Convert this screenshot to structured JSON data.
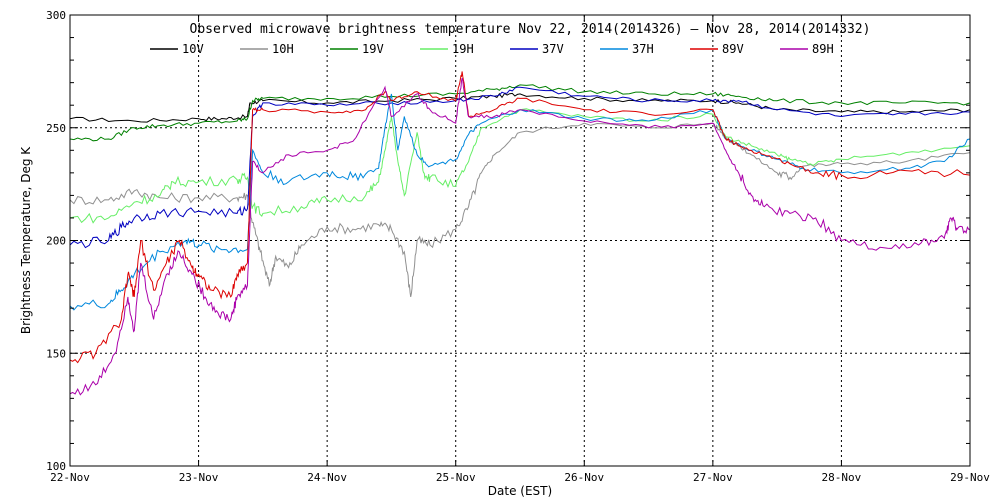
{
  "chart_data": {
    "type": "line",
    "title": "Observed microwave brightness temperature Nov 22, 2014(2014326) – Nov 28, 2014(2014332)",
    "xlabel": "Date (EST)",
    "ylabel": "Brightness Temperature, Deg K",
    "x_categories": [
      "22-Nov",
      "23-Nov",
      "24-Nov",
      "25-Nov",
      "26-Nov",
      "27-Nov",
      "28-Nov",
      "29-Nov"
    ],
    "xlim": [
      0,
      7
    ],
    "ylim": [
      100,
      300
    ],
    "y_ticks": [
      100,
      150,
      200,
      250,
      300
    ],
    "grid": true,
    "legend_position": "top",
    "x_unit": "days since 22-Nov 00:00",
    "series": [
      {
        "name": "10V",
        "color": "#000000",
        "points": [
          [
            0,
            254
          ],
          [
            0.5,
            253
          ],
          [
            1,
            254
          ],
          [
            1.2,
            254
          ],
          [
            1.38,
            255
          ],
          [
            1.4,
            261
          ],
          [
            1.5,
            262
          ],
          [
            2,
            261
          ],
          [
            2.5,
            262
          ],
          [
            3,
            263
          ],
          [
            3.3,
            264
          ],
          [
            3.5,
            265
          ],
          [
            4,
            263
          ],
          [
            4.5,
            262
          ],
          [
            5,
            262
          ],
          [
            5.2,
            261
          ],
          [
            5.5,
            258
          ],
          [
            6,
            257
          ],
          [
            6.5,
            257
          ],
          [
            7,
            258
          ]
        ]
      },
      {
        "name": "10H",
        "color": "#909090",
        "points": [
          [
            0,
            218
          ],
          [
            0.3,
            218
          ],
          [
            0.5,
            222
          ],
          [
            0.7,
            219
          ],
          [
            1,
            219
          ],
          [
            1.3,
            219
          ],
          [
            1.38,
            220
          ],
          [
            1.42,
            208
          ],
          [
            1.48,
            195
          ],
          [
            1.55,
            180
          ],
          [
            1.6,
            193
          ],
          [
            1.7,
            188
          ],
          [
            1.8,
            198
          ],
          [
            2,
            206
          ],
          [
            2.2,
            205
          ],
          [
            2.4,
            207
          ],
          [
            2.5,
            205
          ],
          [
            2.6,
            195
          ],
          [
            2.65,
            175
          ],
          [
            2.7,
            200
          ],
          [
            2.8,
            198
          ],
          [
            3,
            205
          ],
          [
            3.1,
            215
          ],
          [
            3.2,
            230
          ],
          [
            3.3,
            238
          ],
          [
            3.5,
            248
          ],
          [
            4,
            252
          ],
          [
            4.5,
            250
          ],
          [
            5,
            252
          ],
          [
            5.1,
            246
          ],
          [
            5.2,
            242
          ],
          [
            5.3,
            238
          ],
          [
            5.5,
            230
          ],
          [
            5.6,
            228
          ],
          [
            5.7,
            233
          ],
          [
            6,
            234
          ],
          [
            6.5,
            235
          ],
          [
            7,
            239
          ]
        ]
      },
      {
        "name": "19V",
        "color": "#008000",
        "points": [
          [
            0,
            245
          ],
          [
            0.3,
            245
          ],
          [
            0.5,
            250
          ],
          [
            0.7,
            251
          ],
          [
            1,
            252
          ],
          [
            1.3,
            253
          ],
          [
            1.38,
            254
          ],
          [
            1.42,
            262
          ],
          [
            1.5,
            263
          ],
          [
            2,
            263
          ],
          [
            2.5,
            264
          ],
          [
            3,
            265
          ],
          [
            3.3,
            267
          ],
          [
            3.5,
            269
          ],
          [
            4,
            266
          ],
          [
            4.5,
            265
          ],
          [
            5,
            265
          ],
          [
            5.2,
            264
          ],
          [
            5.5,
            262
          ],
          [
            6,
            261
          ],
          [
            6.5,
            261
          ],
          [
            7,
            261
          ]
        ]
      },
      {
        "name": "19H",
        "color": "#66ee66",
        "points": [
          [
            0,
            210
          ],
          [
            0.3,
            210
          ],
          [
            0.5,
            217
          ],
          [
            0.7,
            220
          ],
          [
            0.8,
            226
          ],
          [
            1,
            226
          ],
          [
            1.3,
            227
          ],
          [
            1.38,
            228
          ],
          [
            1.42,
            215
          ],
          [
            1.5,
            212
          ],
          [
            1.8,
            215
          ],
          [
            2,
            218
          ],
          [
            2.3,
            220
          ],
          [
            2.4,
            226
          ],
          [
            2.45,
            240
          ],
          [
            2.5,
            255
          ],
          [
            2.55,
            235
          ],
          [
            2.6,
            220
          ],
          [
            2.7,
            248
          ],
          [
            2.75,
            230
          ],
          [
            2.8,
            228
          ],
          [
            3,
            224
          ],
          [
            3.1,
            235
          ],
          [
            3.2,
            250
          ],
          [
            3.5,
            258
          ],
          [
            4,
            255
          ],
          [
            4.5,
            253
          ],
          [
            5,
            256
          ],
          [
            5.1,
            246
          ],
          [
            5.3,
            242
          ],
          [
            5.5,
            238
          ],
          [
            5.6,
            236
          ],
          [
            5.8,
            234
          ],
          [
            6,
            236
          ],
          [
            6.5,
            239
          ],
          [
            7,
            242
          ]
        ]
      },
      {
        "name": "37V",
        "color": "#0000c0",
        "points": [
          [
            0,
            198
          ],
          [
            0.3,
            200
          ],
          [
            0.4,
            206
          ],
          [
            0.5,
            210
          ],
          [
            0.7,
            212
          ],
          [
            1,
            213
          ],
          [
            1.3,
            212
          ],
          [
            1.38,
            214
          ],
          [
            1.42,
            255
          ],
          [
            1.5,
            261
          ],
          [
            2,
            260
          ],
          [
            2.5,
            261
          ],
          [
            3,
            262
          ],
          [
            3.3,
            264
          ],
          [
            3.5,
            268
          ],
          [
            4,
            264
          ],
          [
            4.5,
            262
          ],
          [
            5,
            262
          ],
          [
            5.2,
            262
          ],
          [
            5.5,
            258
          ],
          [
            6,
            255
          ],
          [
            6.5,
            256
          ],
          [
            7,
            257
          ]
        ]
      },
      {
        "name": "37H",
        "color": "#0088dd",
        "points": [
          [
            0,
            171
          ],
          [
            0.3,
            172
          ],
          [
            0.4,
            178
          ],
          [
            0.5,
            185
          ],
          [
            0.7,
            195
          ],
          [
            0.9,
            200
          ],
          [
            1,
            198
          ],
          [
            1.2,
            196
          ],
          [
            1.38,
            196
          ],
          [
            1.42,
            240
          ],
          [
            1.5,
            230
          ],
          [
            1.7,
            226
          ],
          [
            2,
            230
          ],
          [
            2.2,
            228
          ],
          [
            2.4,
            232
          ],
          [
            2.45,
            250
          ],
          [
            2.5,
            265
          ],
          [
            2.55,
            240
          ],
          [
            2.6,
            255
          ],
          [
            2.7,
            238
          ],
          [
            2.8,
            233
          ],
          [
            3,
            236
          ],
          [
            3.1,
            247
          ],
          [
            3.2,
            252
          ],
          [
            3.5,
            258
          ],
          [
            4,
            254
          ],
          [
            4.5,
            253
          ],
          [
            5,
            258
          ],
          [
            5.1,
            245
          ],
          [
            5.3,
            240
          ],
          [
            5.5,
            236
          ],
          [
            5.7,
            232
          ],
          [
            6,
            230
          ],
          [
            6.5,
            232
          ],
          [
            6.8,
            235
          ],
          [
            7,
            245
          ]
        ]
      },
      {
        "name": "89V",
        "color": "#dd0000",
        "points": [
          [
            0,
            147
          ],
          [
            0.2,
            150
          ],
          [
            0.4,
            165
          ],
          [
            0.45,
            185
          ],
          [
            0.5,
            175
          ],
          [
            0.55,
            200
          ],
          [
            0.65,
            178
          ],
          [
            0.75,
            190
          ],
          [
            0.85,
            200
          ],
          [
            0.95,
            188
          ],
          [
            1,
            185
          ],
          [
            1.1,
            178
          ],
          [
            1.25,
            175
          ],
          [
            1.3,
            185
          ],
          [
            1.38,
            190
          ],
          [
            1.42,
            258
          ],
          [
            1.5,
            258
          ],
          [
            2,
            257
          ],
          [
            2.3,
            258
          ],
          [
            2.45,
            266
          ],
          [
            2.5,
            262
          ],
          [
            2.7,
            266
          ],
          [
            3,
            262
          ],
          [
            3.05,
            275
          ],
          [
            3.1,
            255
          ],
          [
            3.3,
            258
          ],
          [
            3.5,
            263
          ],
          [
            4,
            258
          ],
          [
            4.5,
            256
          ],
          [
            5,
            258
          ],
          [
            5.1,
            245
          ],
          [
            5.2,
            242
          ],
          [
            5.4,
            238
          ],
          [
            5.6,
            234
          ],
          [
            5.8,
            230
          ],
          [
            6,
            229
          ],
          [
            6.5,
            231
          ],
          [
            7,
            229
          ]
        ]
      },
      {
        "name": "89H",
        "color": "#aa00aa",
        "points": [
          [
            0,
            132
          ],
          [
            0.2,
            136
          ],
          [
            0.35,
            150
          ],
          [
            0.45,
            175
          ],
          [
            0.5,
            160
          ],
          [
            0.55,
            190
          ],
          [
            0.65,
            165
          ],
          [
            0.75,
            185
          ],
          [
            0.85,
            195
          ],
          [
            0.95,
            185
          ],
          [
            1.05,
            175
          ],
          [
            1.15,
            168
          ],
          [
            1.25,
            165
          ],
          [
            1.3,
            175
          ],
          [
            1.38,
            180
          ],
          [
            1.42,
            235
          ],
          [
            1.5,
            230
          ],
          [
            1.7,
            238
          ],
          [
            2,
            240
          ],
          [
            2.2,
            244
          ],
          [
            2.45,
            268
          ],
          [
            2.5,
            255
          ],
          [
            2.7,
            265
          ],
          [
            2.8,
            258
          ],
          [
            3,
            252
          ],
          [
            3.05,
            272
          ],
          [
            3.1,
            255
          ],
          [
            3.3,
            255
          ],
          [
            3.5,
            258
          ],
          [
            4,
            253
          ],
          [
            4.5,
            250
          ],
          [
            5,
            252
          ],
          [
            5.1,
            240
          ],
          [
            5.2,
            230
          ],
          [
            5.3,
            220
          ],
          [
            5.4,
            215
          ],
          [
            5.6,
            212
          ],
          [
            5.8,
            210
          ],
          [
            6,
            200
          ],
          [
            6.3,
            197
          ],
          [
            6.6,
            198
          ],
          [
            6.8,
            201
          ],
          [
            6.85,
            210
          ],
          [
            6.9,
            205
          ],
          [
            7,
            205
          ]
        ]
      }
    ]
  }
}
